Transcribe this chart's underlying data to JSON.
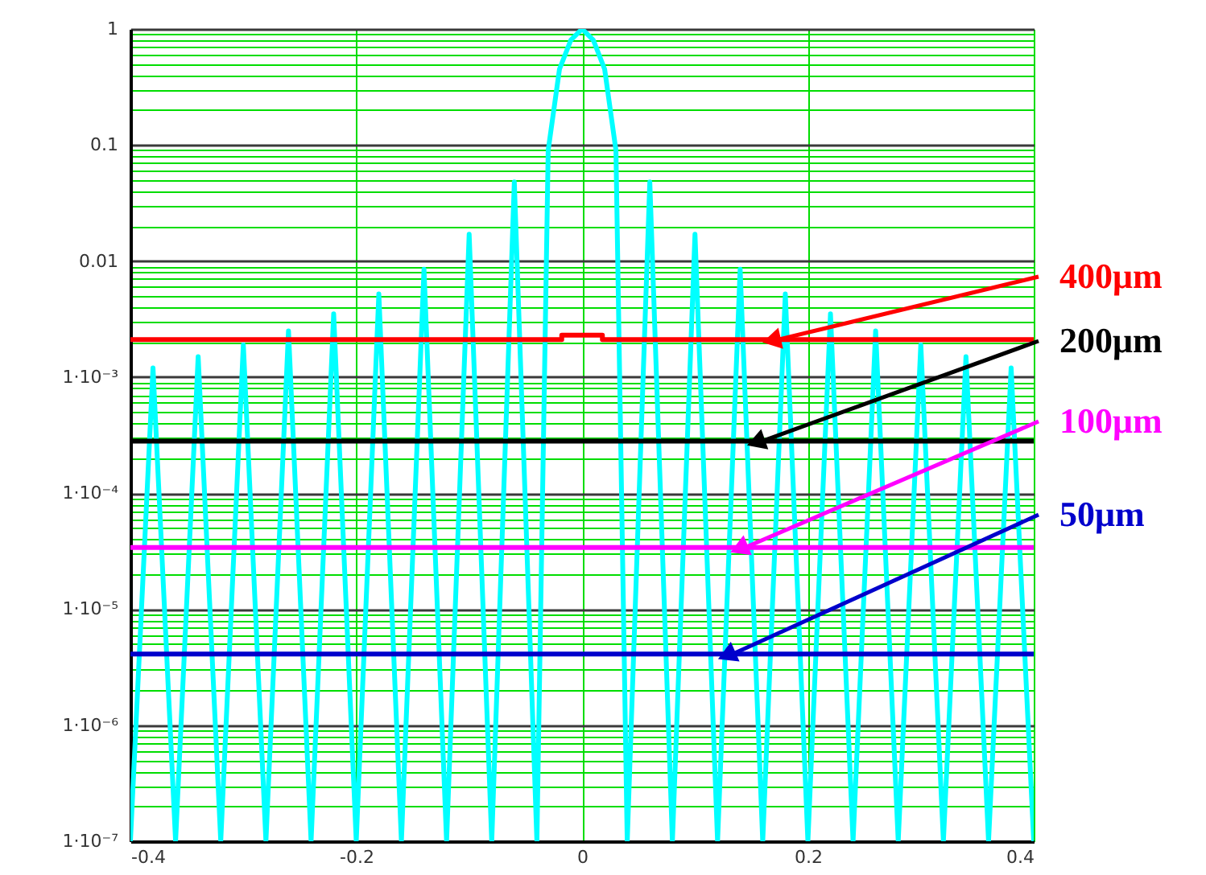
{
  "chart_data": {
    "type": "line",
    "log": "y",
    "grid": true,
    "marker": "none",
    "line_style": "solid",
    "xlim": [
      -0.4,
      0.4
    ],
    "xticks": [
      -0.4,
      -0.2,
      0,
      0.2,
      0.4
    ],
    "ylim": [
      1e-07,
      1
    ],
    "yticks": [
      1,
      0.1,
      0.01,
      {
        "value": 0.001,
        "label": "1·10⁻³"
      },
      {
        "value": 0.0001,
        "label": "1·10⁻⁴"
      },
      {
        "value": 1e-05,
        "label": "1·10⁻⁵"
      },
      {
        "value": 1e-06,
        "label": "1·10⁻⁶"
      },
      {
        "value": 1e-07,
        "label": "1·10⁻⁷"
      }
    ],
    "series": [
      {
        "color": "#00ffff",
        "x": [
          -0.4,
          -0.38,
          -0.36,
          -0.34,
          -0.32,
          -0.3,
          -0.28,
          -0.26,
          -0.24,
          -0.22,
          -0.2,
          -0.18,
          -0.16,
          -0.14,
          -0.12,
          -0.1,
          -0.08,
          -0.06,
          -0.04,
          -0.03,
          -0.02,
          -0.01,
          0,
          0.01,
          0.02,
          0.03,
          0.04,
          0.06,
          0.08,
          0.1,
          0.12,
          0.14,
          0.16,
          0.18,
          0.2,
          0.22,
          0.24,
          0.26,
          0.28,
          0.3,
          0.32,
          0.34,
          0.36,
          0.38,
          0.4
        ],
        "values": [
          1e-07,
          0.0012,
          1e-07,
          0.0015,
          1e-07,
          0.0019,
          1e-07,
          0.0025,
          1e-07,
          0.0035,
          1e-07,
          0.0052,
          1e-07,
          0.0085,
          1e-07,
          0.017,
          1e-07,
          0.048,
          1e-07,
          0.09,
          0.45,
          0.8,
          1,
          0.8,
          0.45,
          0.09,
          1e-07,
          0.048,
          1e-07,
          0.017,
          1e-07,
          0.0085,
          1e-07,
          0.0052,
          1e-07,
          0.0035,
          1e-07,
          0.0025,
          1e-07,
          0.0019,
          1e-07,
          0.0015,
          1e-07,
          0.0012,
          1e-07
        ]
      },
      {
        "name": "400μm",
        "color": "#ff0000",
        "x": [
          -0.4,
          -0.018,
          -0.018,
          0.018,
          0.018,
          0.4
        ],
        "values": [
          0.0021,
          0.0021,
          0.0023,
          0.0023,
          0.0021,
          0.0021
        ]
      },
      {
        "name": "200μm",
        "color": "#000000",
        "x": [
          -0.4,
          0.4
        ],
        "values": [
          0.00028,
          0.00028
        ]
      },
      {
        "name": "100μm",
        "color": "#ff00ff",
        "x": [
          -0.4,
          0.4
        ],
        "values": [
          3.4e-05,
          3.4e-05
        ]
      },
      {
        "name": "50μm",
        "color": "#0000cc",
        "x": [
          -0.4,
          0.4
        ],
        "values": [
          4.1e-06,
          4.1e-06
        ]
      }
    ]
  }
}
